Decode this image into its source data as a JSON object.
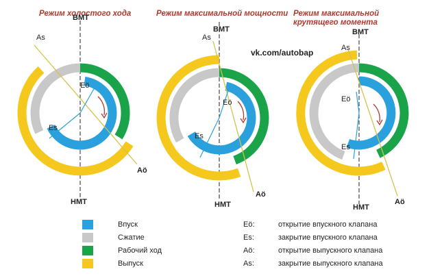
{
  "colors": {
    "intake": "#2aa0dc",
    "compression": "#c8c8c8",
    "power": "#1aa348",
    "exhaust": "#f5c81e",
    "title": "#b03a2e"
  },
  "site": "vk.com/autobap",
  "diagrams": [
    {
      "title": "Режим холостого хода",
      "tdc_label": "ВМТ",
      "bdc_label": "НМТ",
      "label_as": "As",
      "label_eo": "Eö",
      "label_es": "Es",
      "label_ao": "Aö"
    },
    {
      "title": "Режим максимальной мощности",
      "tdc_label": "ВМТ",
      "bdc_label": "НМТ",
      "label_as": "As",
      "label_eo": "Eö",
      "label_es": "Es",
      "label_ao": "Aö"
    },
    {
      "title": "Режим максимальной крутящего момента",
      "tdc_label": "ВМТ",
      "bdc_label": "НМТ",
      "label_as": "As",
      "label_eo": "Eö",
      "label_es": "Es",
      "label_ao": "Aö"
    }
  ],
  "legend": [
    {
      "key": "intake",
      "label": "Впуск"
    },
    {
      "key": "compression",
      "label": "Сжатие"
    },
    {
      "key": "power",
      "label": "Рабочий ход"
    },
    {
      "key": "exhaust",
      "label": "Выпуск"
    }
  ],
  "definitions": [
    {
      "abbr": "Eö:",
      "text": "открытие впускного клапана"
    },
    {
      "abbr": "Es:",
      "text": "закрытие впускного клапана"
    },
    {
      "abbr": "Aö:",
      "text": "открытие выпускного клапана"
    },
    {
      "abbr": "As:",
      "text": "закрытие выпускного клапана"
    }
  ]
}
